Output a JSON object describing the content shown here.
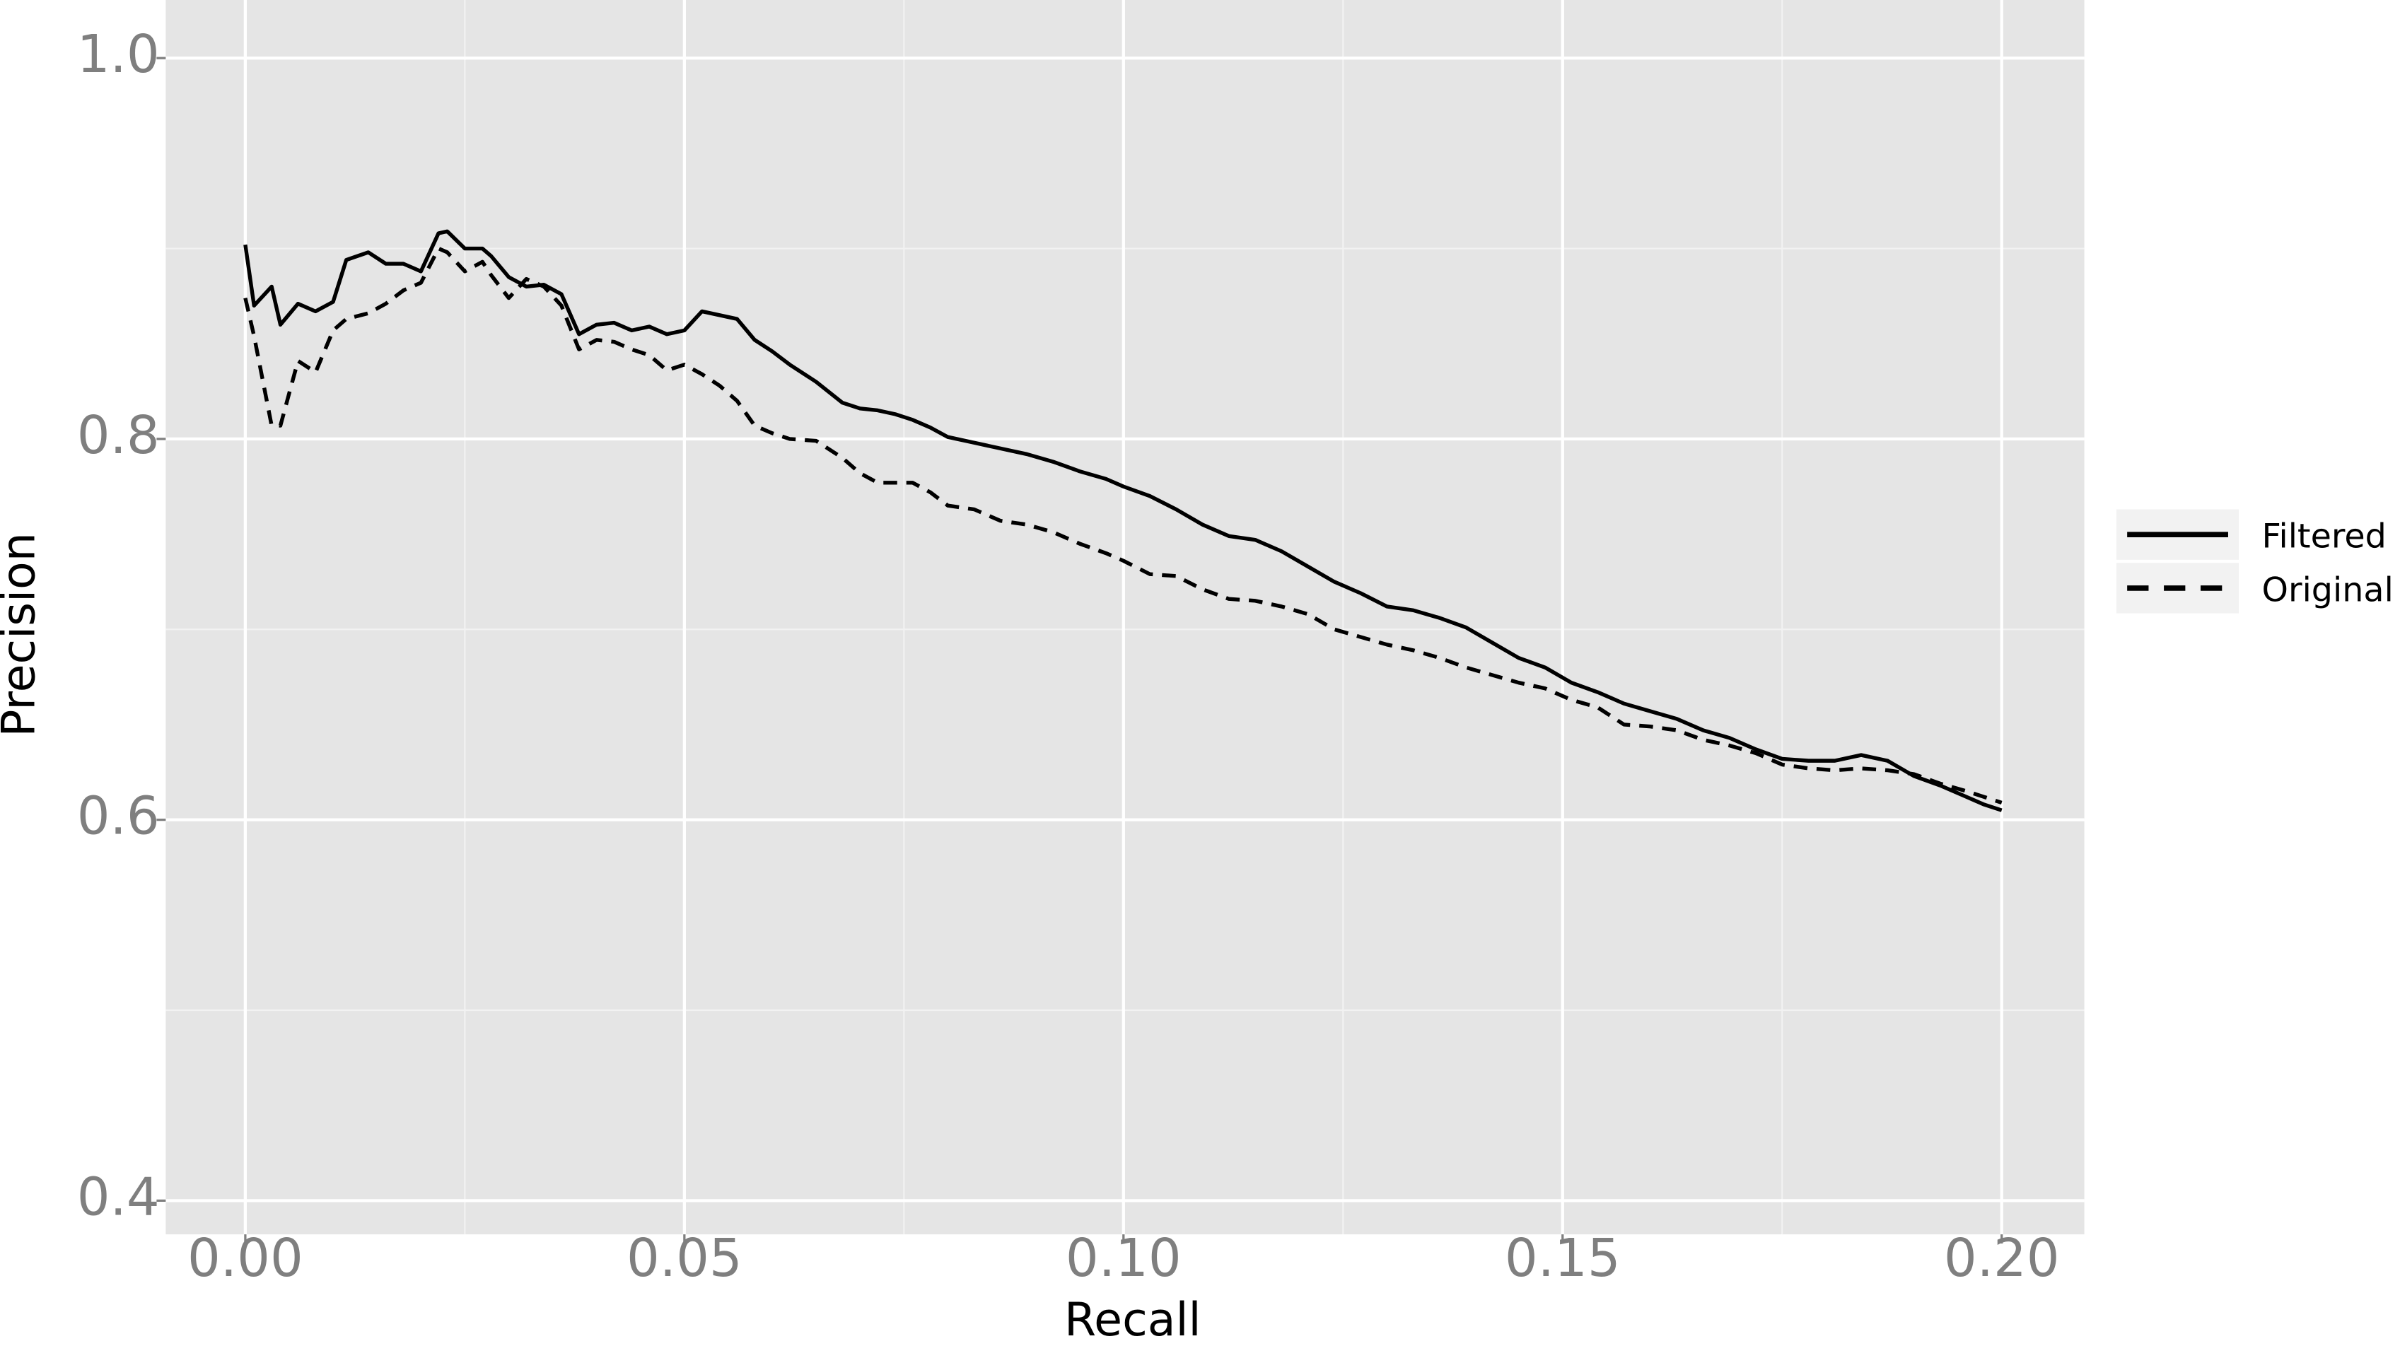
{
  "chart_data": {
    "type": "line",
    "x_label": "Recall",
    "y_label": "Precision",
    "x": [
      0,
      0.001,
      0.003,
      0.004,
      0.006,
      0.008,
      0.01,
      0.0115,
      0.014,
      0.016,
      0.018,
      0.02,
      0.022,
      0.023,
      0.025,
      0.027,
      0.028,
      0.03,
      0.032,
      0.034,
      0.036,
      0.038,
      0.04,
      0.042,
      0.044,
      0.046,
      0.048,
      0.05,
      0.052,
      0.054,
      0.056,
      0.058,
      0.06,
      0.062,
      0.065,
      0.068,
      0.07,
      0.072,
      0.074,
      0.076,
      0.078,
      0.08,
      0.083,
      0.086,
      0.089,
      0.092,
      0.095,
      0.098,
      0.1,
      0.103,
      0.106,
      0.109,
      0.112,
      0.115,
      0.118,
      0.121,
      0.124,
      0.127,
      0.13,
      0.133,
      0.136,
      0.139,
      0.142,
      0.145,
      0.148,
      0.151,
      0.154,
      0.157,
      0.16,
      0.163,
      0.166,
      0.169,
      0.172,
      0.175,
      0.178,
      0.181,
      0.184,
      0.187,
      0.19,
      0.193,
      0.196,
      0.198,
      0.2
    ],
    "series": [
      {
        "name": "Filtered",
        "color": "#000000",
        "linetype": "solid",
        "values": [
          0.902,
          0.87,
          0.88,
          0.86,
          0.871,
          0.867,
          0.872,
          0.894,
          0.898,
          0.892,
          0.892,
          0.888,
          0.908,
          0.909,
          0.9,
          0.9,
          0.896,
          0.885,
          0.88,
          0.881,
          0.876,
          0.855,
          0.86,
          0.861,
          0.857,
          0.859,
          0.855,
          0.857,
          0.867,
          0.865,
          0.863,
          0.852,
          0.846,
          0.839,
          0.83,
          0.819,
          0.816,
          0.815,
          0.813,
          0.81,
          0.806,
          0.801,
          0.798,
          0.795,
          0.792,
          0.788,
          0.783,
          0.779,
          0.775,
          0.77,
          0.763,
          0.755,
          0.749,
          0.747,
          0.741,
          0.733,
          0.725,
          0.719,
          0.712,
          0.71,
          0.706,
          0.701,
          0.693,
          0.685,
          0.68,
          0.672,
          0.667,
          0.661,
          0.657,
          0.653,
          0.647,
          0.643,
          0.637,
          0.632,
          0.631,
          0.631,
          0.634,
          0.631,
          0.623,
          0.618,
          0.612,
          0.608,
          0.605
        ]
      },
      {
        "name": "Original",
        "color": "#000000",
        "linetype": "dashed",
        "values": [
          0.874,
          0.854,
          0.807,
          0.807,
          0.841,
          0.835,
          0.857,
          0.863,
          0.866,
          0.871,
          0.878,
          0.882,
          0.9,
          0.898,
          0.888,
          0.893,
          0.886,
          0.874,
          0.884,
          0.88,
          0.87,
          0.847,
          0.852,
          0.851,
          0.847,
          0.844,
          0.836,
          0.839,
          0.834,
          0.828,
          0.82,
          0.807,
          0.803,
          0.8,
          0.799,
          0.79,
          0.782,
          0.777,
          0.777,
          0.777,
          0.772,
          0.765,
          0.763,
          0.757,
          0.755,
          0.751,
          0.745,
          0.74,
          0.736,
          0.729,
          0.728,
          0.721,
          0.716,
          0.715,
          0.712,
          0.708,
          0.7,
          0.696,
          0.692,
          0.689,
          0.685,
          0.68,
          0.676,
          0.672,
          0.669,
          0.663,
          0.659,
          0.65,
          0.649,
          0.647,
          0.642,
          0.639,
          0.635,
          0.629,
          0.627,
          0.626,
          0.627,
          0.626,
          0.624,
          0.619,
          0.615,
          0.612,
          0.609
        ]
      }
    ],
    "xlim": [
      -0.00906,
      0.20941
    ],
    "ylim": [
      0.3823,
      1.0305
    ],
    "xticks": [
      {
        "value": 0,
        "label": "0.00"
      },
      0.05,
      {
        "value": 0.1,
        "label": "0.10"
      },
      0.15,
      {
        "value": 0.2,
        "label": "0.20"
      }
    ],
    "yticks": [
      {
        "value": 1.0,
        "label": "1.0"
      },
      0.8,
      0.6,
      0.4
    ],
    "x_minor_grid": [
      0.025,
      0.075,
      0.125,
      0.175
    ],
    "y_minor_grid": [
      0.5,
      0.7,
      0.9
    ],
    "grid": true,
    "legend_position": "right"
  }
}
